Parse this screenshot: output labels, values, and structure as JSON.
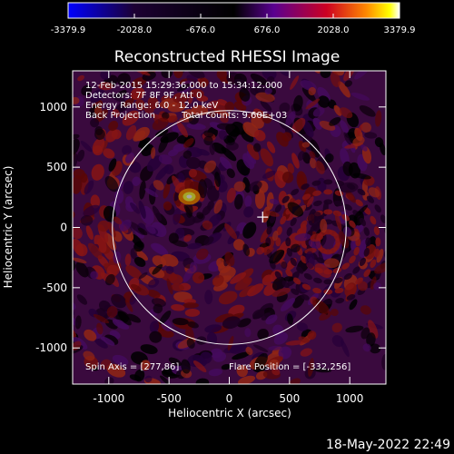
{
  "title": "Reconstructed RHESSI Image",
  "colorbar": {
    "colors": [
      "#0000ff",
      "#1c0033",
      "#000000",
      "#5a0090",
      "#cc0022",
      "#ff8800",
      "#ffff00",
      "#ffffff"
    ],
    "min": -3379.9,
    "max": 3379.9,
    "tick_labels": [
      "-3379.9",
      "-2028.0",
      "-676.0",
      "676.0",
      "2028.0",
      "3379.9"
    ]
  },
  "annotations": {
    "line1": "12-Feb-2015 15:29:36.000 to 15:34:12.000",
    "line2": "Detectors: 7F 8F 9F, Att 0",
    "line3": "Energy Range: 6.0 - 12.0 keV",
    "line4a": "Back Projection",
    "line4b": "Total counts: 9.60E+03",
    "spin_axis": "Spin Axis = [277,86]",
    "flare_position": "Flare Position = [-332,256]"
  },
  "axes": {
    "xlabel": "Heliocentric X (arcsec)",
    "ylabel": "Heliocentric Y (arcsec)",
    "xlim": [
      -1300,
      1300
    ],
    "ylim": [
      -1300,
      1300
    ],
    "x_ticks": [
      "-1000",
      "-500",
      "0",
      "500",
      "1000"
    ],
    "y_ticks": [
      "-1000",
      "-500",
      "0",
      "500",
      "1000"
    ]
  },
  "markers": {
    "spin_axis_point": [
      277,
      86
    ],
    "flare_point": [
      -332,
      256
    ],
    "solar_limb_radius_arcsec": 970
  },
  "timestamp": "18-May-2022 22:49"
}
